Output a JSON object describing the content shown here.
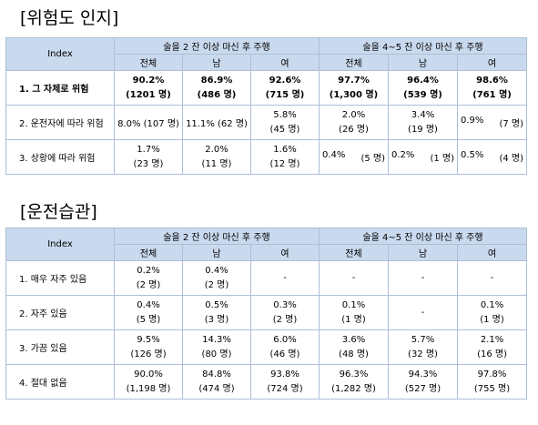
{
  "section1": {
    "title": "[위험도 인지]",
    "header": {
      "index": "Index",
      "group1": "술을 2 잔 이상 마신 후 주행",
      "group2": "술을 4~5 잔 이상 마신 후 주행",
      "subs": [
        "전체",
        "남",
        "여",
        "전체",
        "남",
        "여"
      ]
    },
    "rows": [
      {
        "label": "1. 그 자체로 위험",
        "cells": [
          [
            "90.2%",
            "(1201 명)"
          ],
          [
            "86.9%",
            "(486 명)"
          ],
          [
            "92.6%",
            "(715 명)"
          ],
          [
            "97.7%",
            "(1,300 명)"
          ],
          [
            "96.4%",
            "(539 명)"
          ],
          [
            "98.6%",
            "(761 명)"
          ]
        ]
      },
      {
        "label": "2. 운전자에 따라 위험",
        "cells": [
          [
            "8.0% (107 명)"
          ],
          [
            "11.1% (62 명)"
          ],
          [
            "5.8%",
            "(45 명)"
          ],
          [
            "2.0%",
            "(26 명)"
          ],
          [
            "3.4%",
            "(19 명)"
          ],
          [
            "0.9%",
            "(7 명)"
          ]
        ]
      },
      {
        "label": "3. 상황에 따라 위험",
        "cells": [
          [
            "1.7%",
            "(23 명)"
          ],
          [
            "2.0%",
            "(11 명)"
          ],
          [
            "1.6%",
            "(12 명)"
          ],
          [
            "0.4%",
            "(5 명)"
          ],
          [
            "0.2%",
            "(1 명)"
          ],
          [
            "0.5%",
            "(4 명)"
          ]
        ]
      }
    ]
  },
  "section2": {
    "title": "[운전습관]",
    "header": {
      "index": "Index",
      "group1": "술을 2 잔 이상 마신 후 주행",
      "group2": "술을 4~5 잔 이상 마신 후 주행",
      "subs": [
        "전체",
        "남",
        "여",
        "전체",
        "남",
        "여"
      ]
    },
    "rows": [
      {
        "label": "1. 매우 자주 있음",
        "cells": [
          [
            "0.2%",
            "(2 명)"
          ],
          [
            "0.4%",
            "(2 명)"
          ],
          [
            "-"
          ],
          [
            "-"
          ],
          [
            "-"
          ],
          [
            "-"
          ]
        ]
      },
      {
        "label": "2. 자주 있음",
        "cells": [
          [
            "0.4%",
            "(5 명)"
          ],
          [
            "0.5%",
            "(3 명)"
          ],
          [
            "0.3%",
            "(2 명)"
          ],
          [
            "0.1%",
            "(1 명)"
          ],
          [
            "-"
          ],
          [
            "0.1%",
            "(1 명)"
          ]
        ]
      },
      {
        "label": "3. 가끔 있음",
        "cells": [
          [
            "9.5%",
            "(126 명)"
          ],
          [
            "14.3%",
            "(80 명)"
          ],
          [
            "6.0%",
            "(46 명)"
          ],
          [
            "3.6%",
            "(48 명)"
          ],
          [
            "5.7%",
            "(32 명)"
          ],
          [
            "2.1%",
            "(16 명)"
          ]
        ]
      },
      {
        "label": "4. 절대 없음",
        "cells": [
          [
            "90.0%",
            "(1,198 명)"
          ],
          [
            "84.8%",
            "(474 명)"
          ],
          [
            "93.8%",
            "(724 명)"
          ],
          [
            "96.3%",
            "(1,282 명)"
          ],
          [
            "94.3%",
            "(527 명)"
          ],
          [
            "97.8%",
            "(755 명)"
          ]
        ]
      }
    ]
  }
}
